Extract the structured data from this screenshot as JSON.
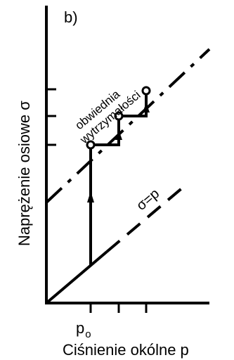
{
  "panel_label": "b)",
  "y_axis_title": "Naprężenie osiowe σ",
  "x_axis_title": "Ciśnienie okólne p",
  "x_tick": {
    "symbol": "p",
    "subscript": "o"
  },
  "lines": {
    "sigma_eq_p": "σ=p",
    "envelope_line1": "obwiednia",
    "envelope_line2": "wytrzymałości"
  },
  "colors": {
    "ink": "#000000",
    "background": "#ffffff"
  }
}
